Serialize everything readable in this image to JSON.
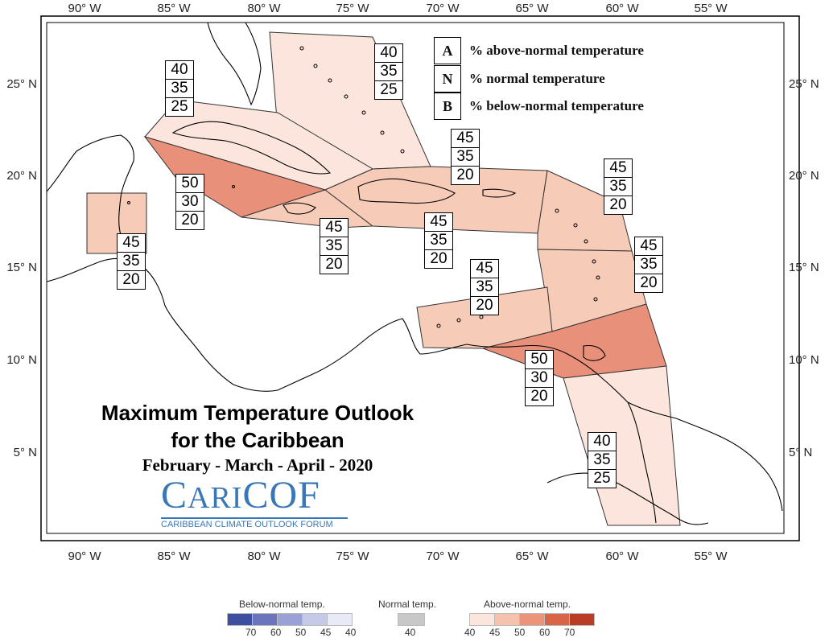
{
  "axes": {
    "lon_labels": [
      "90° W",
      "85° W",
      "80° W",
      "75° W",
      "70° W",
      "65° W",
      "60° W",
      "55° W"
    ],
    "lat_labels": [
      "25° N",
      "20° N",
      "15° N",
      "10° N",
      "5° N"
    ]
  },
  "legend": {
    "rows": [
      {
        "key": "A",
        "text": "% above-normal temperature"
      },
      {
        "key": "N",
        "text": "% normal temperature"
      },
      {
        "key": "B",
        "text": "% below-normal temperature"
      }
    ]
  },
  "forecast_boxes": [
    {
      "above": "40",
      "normal": "35",
      "below": "25"
    },
    {
      "above": "40",
      "normal": "35",
      "below": "25"
    },
    {
      "above": "50",
      "normal": "30",
      "below": "20"
    },
    {
      "above": "45",
      "normal": "35",
      "below": "20"
    },
    {
      "above": "45",
      "normal": "35",
      "below": "20"
    },
    {
      "above": "45",
      "normal": "35",
      "below": "20"
    },
    {
      "above": "45",
      "normal": "35",
      "below": "20"
    },
    {
      "above": "45",
      "normal": "35",
      "below": "20"
    },
    {
      "above": "45",
      "normal": "35",
      "below": "20"
    },
    {
      "above": "45",
      "normal": "35",
      "below": "20"
    },
    {
      "above": "50",
      "normal": "30",
      "below": "20"
    },
    {
      "above": "40",
      "normal": "35",
      "below": "25"
    }
  ],
  "title": {
    "line1": "Maximum Temperature Outlook",
    "line2": "for the Caribbean",
    "season": "February - March - April - 2020"
  },
  "logo": {
    "word_prefix": "C",
    "word_small": "ARI",
    "word_suffix": "COF",
    "subtitle": "CARIBBEAN CLIMATE OUTLOOK FORUM"
  },
  "colorbar": {
    "below_label": "Below-normal temp.",
    "normal_label": "Normal temp.",
    "above_label": "Above-normal temp.",
    "below_ticks": [
      "70",
      "60",
      "50",
      "45",
      "40"
    ],
    "normal_ticks": [
      "40"
    ],
    "above_ticks": [
      "40",
      "45",
      "50",
      "60",
      "70"
    ],
    "below_colors": [
      "#3f4fa0",
      "#6a75bd",
      "#9aa1d6",
      "#c6cae9",
      "#e8eaf7"
    ],
    "normal_color": "#c8c8c8",
    "above_colors": [
      "#fbe5dc",
      "#f5c2ad",
      "#ec9479",
      "#d86547",
      "#b93d25"
    ]
  },
  "colors": {
    "c40": "#fbe5dc",
    "c45": "#f6cbb8",
    "c50": "#e8907a",
    "outline": "#000000"
  }
}
